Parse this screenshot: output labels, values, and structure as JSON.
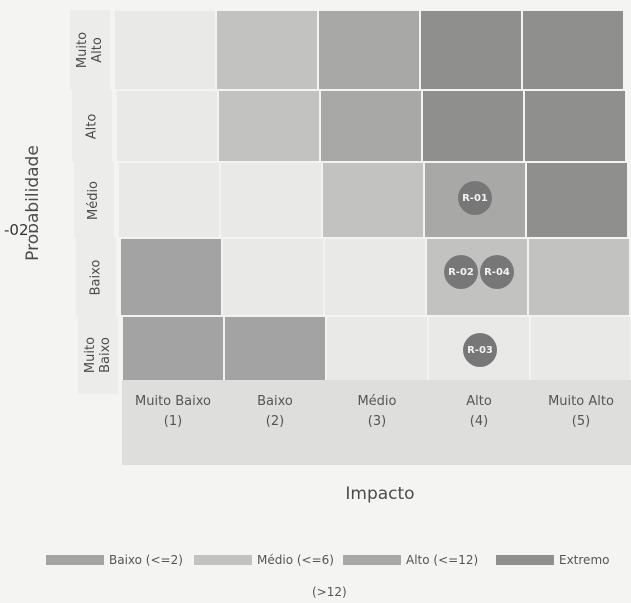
{
  "matrix": {
    "y_axis_label": "Probabilidade",
    "x_axis_label": "Impacto",
    "margin_fragment": "-02",
    "rows": [
      {
        "label": "Muito\nAlto",
        "levels": [
          null,
          "medio",
          "alto",
          "extremo",
          "extremo"
        ]
      },
      {
        "label": "Alto",
        "levels": [
          null,
          "medio",
          "alto",
          "extremo",
          "extremo"
        ]
      },
      {
        "label": "Médio",
        "levels": [
          null,
          null,
          "medio",
          "alto",
          "extremo"
        ]
      },
      {
        "label": "Baixo",
        "levels": [
          "baixo",
          null,
          null,
          "medio",
          "medio"
        ]
      },
      {
        "label": "Muito\nBaixo",
        "levels": [
          "baixo",
          "baixo",
          null,
          null,
          null
        ]
      }
    ],
    "columns": [
      {
        "label": "Muito Baixo",
        "index": "(1)"
      },
      {
        "label": "Baixo",
        "index": "(2)"
      },
      {
        "label": "Médio",
        "index": "(3)"
      },
      {
        "label": "Alto",
        "index": "(4)"
      },
      {
        "label": "Muito Alto",
        "index": "(5)"
      }
    ],
    "risks": [
      {
        "id": "R-01",
        "probability": "Médio",
        "impact": "Alto"
      },
      {
        "id": "R-02",
        "probability": "Baixo",
        "impact": "Alto"
      },
      {
        "id": "R-04",
        "probability": "Baixo",
        "impact": "Alto"
      },
      {
        "id": "R-03",
        "probability": "Muito Baixo",
        "impact": "Alto"
      }
    ]
  },
  "legend": {
    "items": [
      {
        "key": "baixo",
        "label": "Baixo (<=2)"
      },
      {
        "key": "medio",
        "label": "Médio (<=6)"
      },
      {
        "key": "alto",
        "label": "Alto (<=12)"
      },
      {
        "key": "extremo",
        "label": "Extremo"
      }
    ],
    "extremo_note": "(>12)"
  },
  "colors": {
    "baixo": "#a3a3a3",
    "medio": "#c2c2c1",
    "alto": "#a8a8a7",
    "extremo": "#8f8f8e",
    "empty": "#e9e9e7",
    "bubble": "#777777"
  }
}
